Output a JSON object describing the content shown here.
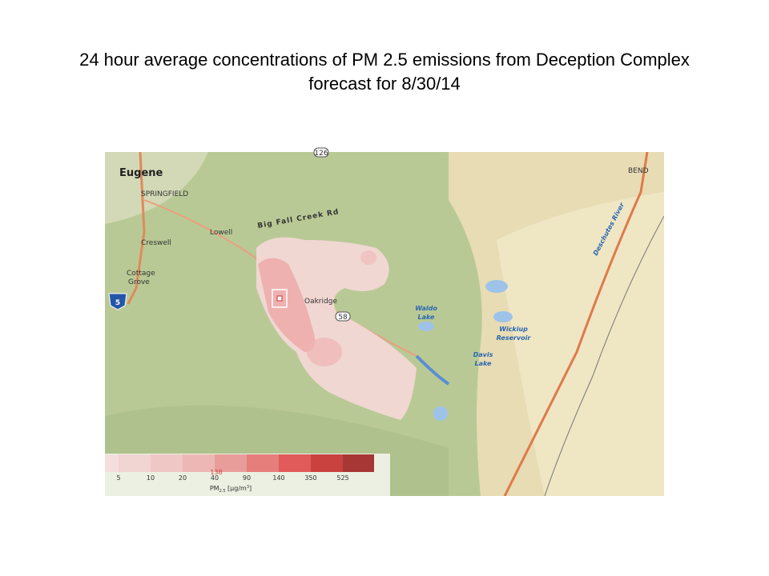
{
  "title_lines": [
    "24 hour average concentrations of PM 2.5 emissions from Deception Complex",
    "forecast for 8/30/14"
  ],
  "map": {
    "labels": {
      "eugene": "Eugene",
      "springfield": "SPRINGFIELD",
      "lowell": "Lowell",
      "road": "Big Fall Creek Rd",
      "creswell": "Creswell",
      "cottage": "Cottage",
      "grove": "Grove",
      "i5": "5",
      "oakridge": "Oakridge",
      "hwy58": "58",
      "hwy126": "126",
      "waldo": "Waldo",
      "waldo_lake": "Lake",
      "wickiup": "Wickiup",
      "reservoir": "Reservoir",
      "davis": "Davis",
      "davis_lake": "Lake",
      "bend": "BEND",
      "river": "Deschutes River"
    }
  },
  "legend": {
    "ticks": [
      5,
      10,
      20,
      40,
      90,
      140,
      350,
      525
    ],
    "colors": [
      "#f4dede",
      "#f2d2d2",
      "#efc3c3",
      "#ecb0b0",
      "#e89494",
      "#e57171",
      "#df4a4a",
      "#c52f2f",
      "#9e2222"
    ],
    "marker": "138",
    "unit": {
      "main": "PM",
      "sub": "2.5",
      "rest": " [µg/m",
      "sup": "3",
      "end": "]"
    }
  }
}
